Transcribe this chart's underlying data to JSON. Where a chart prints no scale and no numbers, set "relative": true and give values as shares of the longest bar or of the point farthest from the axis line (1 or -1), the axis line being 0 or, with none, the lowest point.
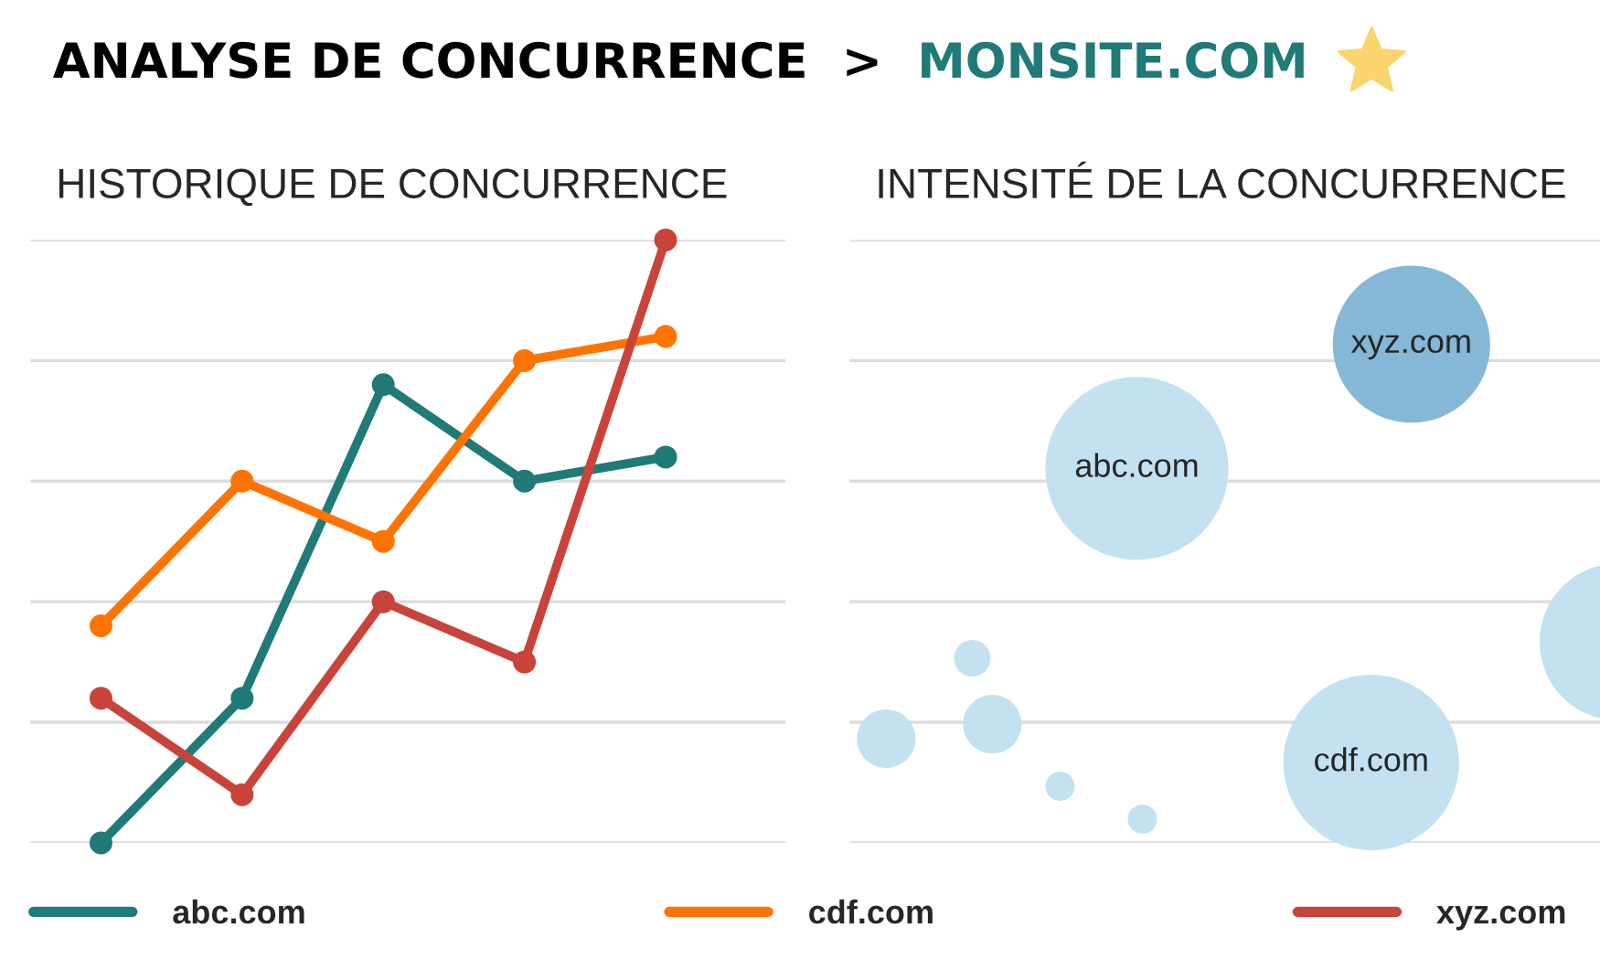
{
  "chart_data": [
    {
      "type": "line",
      "title": "HISTORIQUE DE CONCURRENCE",
      "annotations": [
        "ANALYSE DE CONCURRENCE",
        ">",
        "MONSITE.COM"
      ],
      "relative": true,
      "categories": [
        null,
        null,
        null,
        null,
        null
      ],
      "grid": "y",
      "legend": "bottom",
      "marker": "circle",
      "line_style": "solid",
      "series": [
        {
          "name": "abc.com",
          "color": "#1f7a78",
          "values": [
            0,
            0.24,
            0.76,
            0.6,
            0.64
          ]
        },
        {
          "name": "cdf.com",
          "color": "#ff7300",
          "values": [
            0.36,
            0.6,
            0.5,
            0.8,
            0.84
          ]
        },
        {
          "name": "xyz.com",
          "color": "#c8443a",
          "values": [
            0.24,
            0.08,
            0.4,
            0.3,
            1.0
          ]
        }
      ]
    },
    {
      "type": "other",
      "title": "INTENSITÉ DE LA CONCURRENCE",
      "annotations": [
        "abc.com",
        "xyz.com",
        "cdf.com"
      ]
    }
  ]
}
